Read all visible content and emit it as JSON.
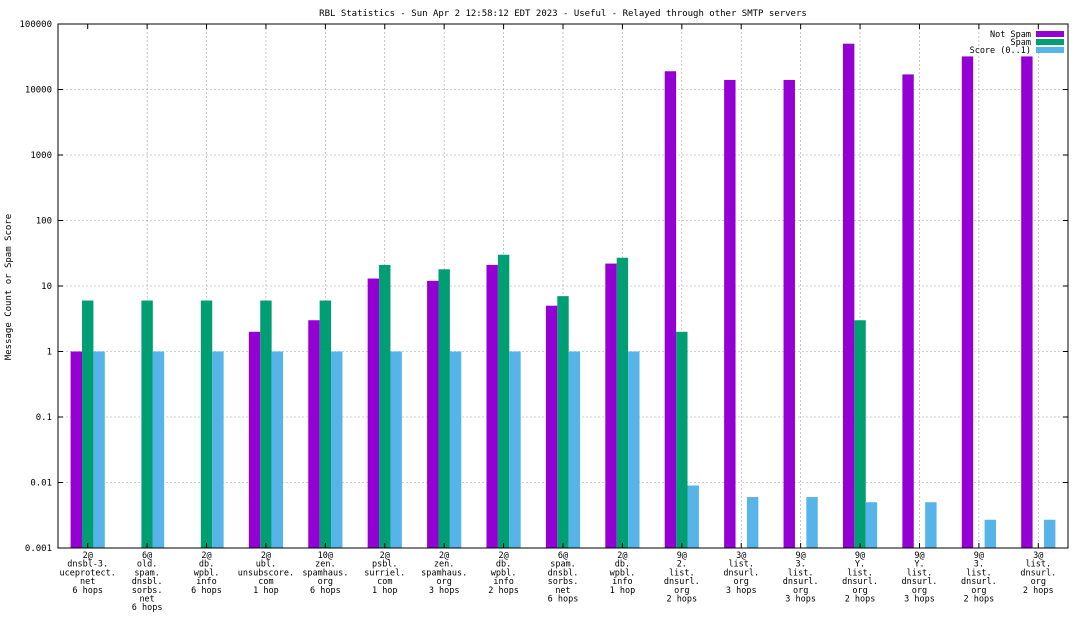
{
  "chart_data": {
    "type": "bar",
    "title": "RBL Statistics - Sun Apr  2 12:58:12 EDT 2023 - Useful - Relayed through other SMTP servers",
    "ylabel": "Message Count or Spam Score",
    "xlabel": "",
    "yscale": "log",
    "ylim": [
      0.001,
      100000
    ],
    "yticks": [
      {
        "value": 0.001,
        "label": "0.001"
      },
      {
        "value": 0.01,
        "label": "0.01"
      },
      {
        "value": 0.1,
        "label": "0.1"
      },
      {
        "value": 1,
        "label": "1"
      },
      {
        "value": 10,
        "label": "10"
      },
      {
        "value": 100,
        "label": "100"
      },
      {
        "value": 1000,
        "label": "1000"
      },
      {
        "value": 10000,
        "label": "10000"
      },
      {
        "value": 100000,
        "label": "100000"
      }
    ],
    "grid": true,
    "legend_position": "top-right",
    "categories": [
      [
        "2@",
        "dnsbl-3.",
        "uceprotect.",
        "net",
        "6 hops"
      ],
      [
        "6@",
        "old.",
        "spam.",
        "dnsbl.",
        "sorbs.",
        "net",
        "6 hops"
      ],
      [
        "2@",
        "db.",
        "wpbl.",
        "info",
        "6 hops"
      ],
      [
        "2@",
        "ubl.",
        "unsubscore.",
        "com",
        "1 hop"
      ],
      [
        "10@",
        "zen.",
        "spamhaus.",
        "org",
        "6 hops"
      ],
      [
        "2@",
        "psbl.",
        "surriel.",
        "com",
        "1 hop"
      ],
      [
        "2@",
        "zen.",
        "spamhaus.",
        "org",
        "3 hops"
      ],
      [
        "2@",
        "db.",
        "wpbl.",
        "info",
        "2 hops"
      ],
      [
        "6@",
        "spam.",
        "dnsbl.",
        "sorbs.",
        "net",
        "6 hops"
      ],
      [
        "2@",
        "db.",
        "wpbl.",
        "info",
        "1 hop"
      ],
      [
        "9@",
        "2.",
        "list.",
        "dnsurl.",
        "org",
        "2 hops"
      ],
      [
        "3@",
        "list.",
        "dnsurl.",
        "org",
        "3 hops"
      ],
      [
        "9@",
        "3.",
        "list.",
        "dnsurl.",
        "org",
        "3 hops"
      ],
      [
        "9@",
        "Y.",
        "list.",
        "dnsurl.",
        "org",
        "2 hops"
      ],
      [
        "9@",
        "Y.",
        "list.",
        "dnsurl.",
        "org",
        "3 hops"
      ],
      [
        "9@",
        "3.",
        "list.",
        "dnsurl.",
        "org",
        "2 hops"
      ],
      [
        "3@",
        "list.",
        "dnsurl.",
        "org",
        "2 hops"
      ]
    ],
    "series": [
      {
        "name": "Not Spam",
        "color": "#9400d3",
        "values": [
          1,
          null,
          null,
          2,
          3,
          13,
          12,
          21,
          5,
          22,
          19000,
          14000,
          14000,
          50000,
          17000,
          32000,
          32000
        ]
      },
      {
        "name": "Spam",
        "color": "#009e73",
        "values": [
          6,
          6,
          6,
          6,
          6,
          21,
          18,
          30,
          7,
          27,
          2,
          null,
          null,
          3,
          null,
          null,
          null
        ]
      },
      {
        "name": "Score (0..1)",
        "color": "#56b4e9",
        "values": [
          1,
          1,
          1,
          1,
          1,
          1,
          1,
          1,
          1,
          1,
          0.009,
          0.006,
          0.006,
          0.005,
          0.005,
          0.0027,
          0.0027
        ]
      }
    ]
  }
}
